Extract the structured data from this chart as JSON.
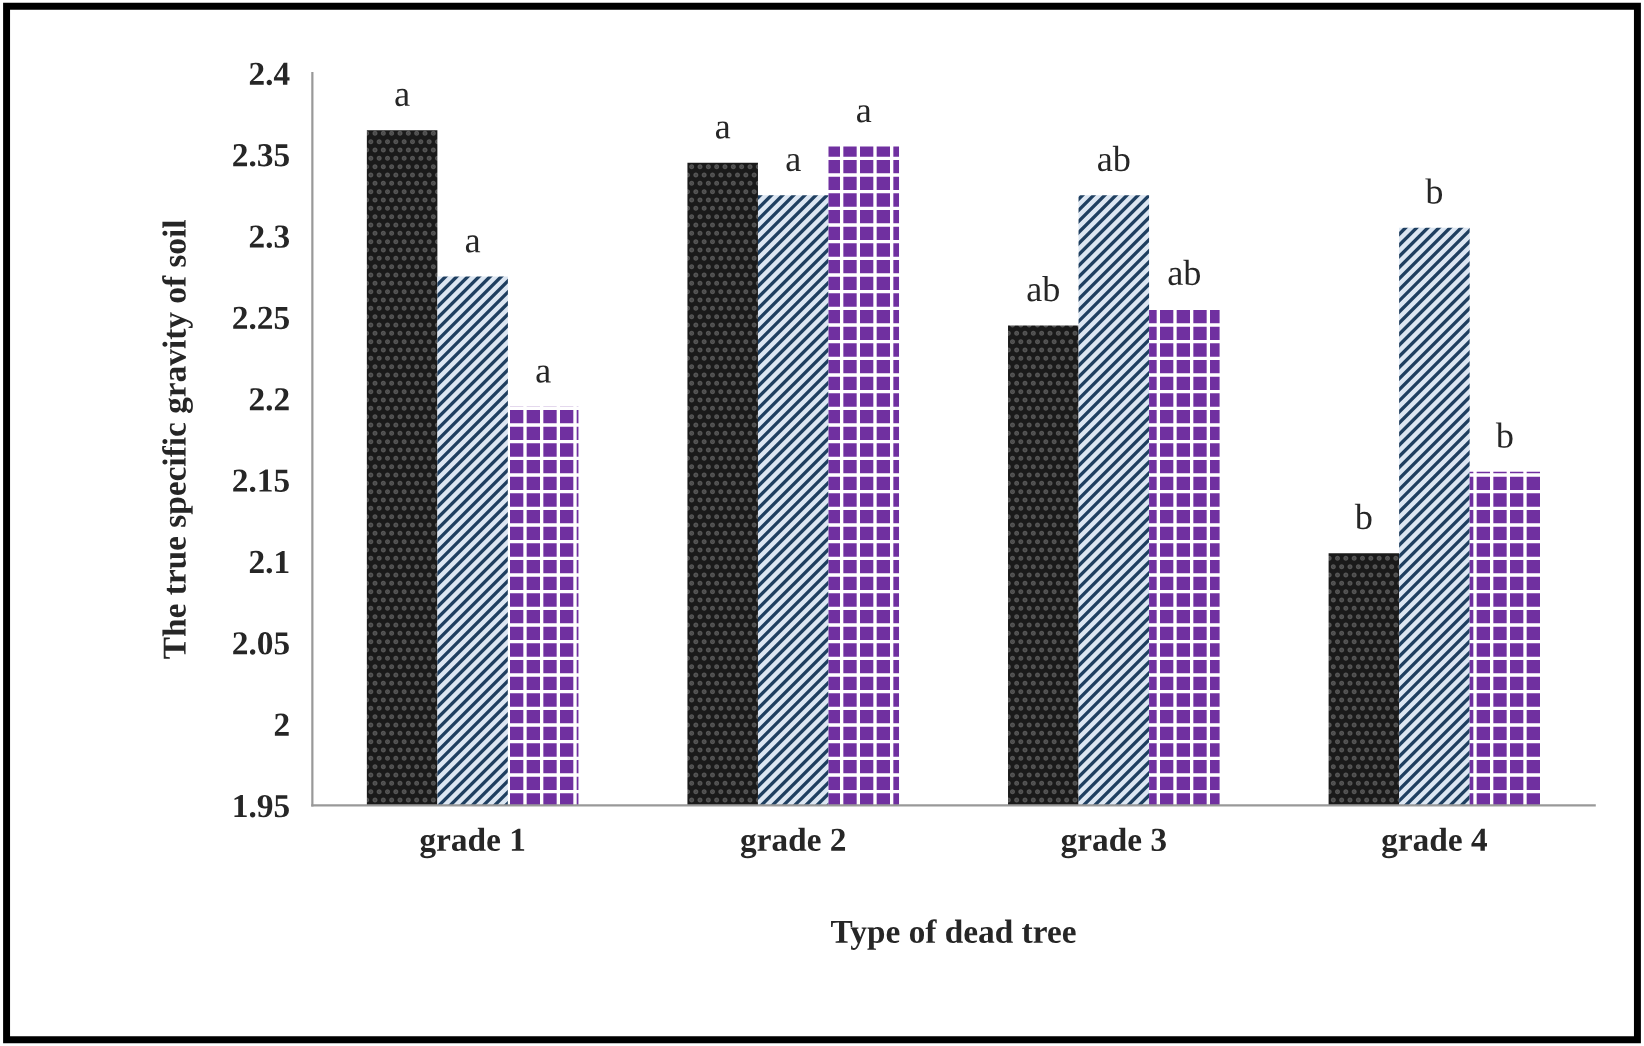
{
  "chart_data": {
    "type": "bar",
    "xlabel": "Type of dead tree",
    "ylabel": "The true specific gravity of soil",
    "categories": [
      "grade 1",
      "grade 2",
      "grade 3",
      "grade 4"
    ],
    "series": [
      {
        "color": "#1a1a1a",
        "values": [
          2.365,
          2.345,
          2.245,
          2.105
        ],
        "value_labels": [
          "a",
          "a",
          "ab",
          "b"
        ]
      },
      {
        "color": "#dce6f2",
        "values": [
          2.275,
          2.325,
          2.325,
          2.305
        ],
        "value_labels": [
          "a",
          "a",
          "ab",
          "b"
        ]
      },
      {
        "color": "#7030a0",
        "values": [
          2.195,
          2.355,
          2.255,
          2.155
        ],
        "value_labels": [
          "a",
          "a",
          "ab",
          "b"
        ]
      }
    ],
    "ylim": [
      1.95,
      2.4
    ],
    "yticks": [
      1.95,
      2,
      2.05,
      2.1,
      2.15,
      2.2,
      2.25,
      2.3,
      2.35,
      2.4
    ],
    "grid": false,
    "legend": false
  }
}
